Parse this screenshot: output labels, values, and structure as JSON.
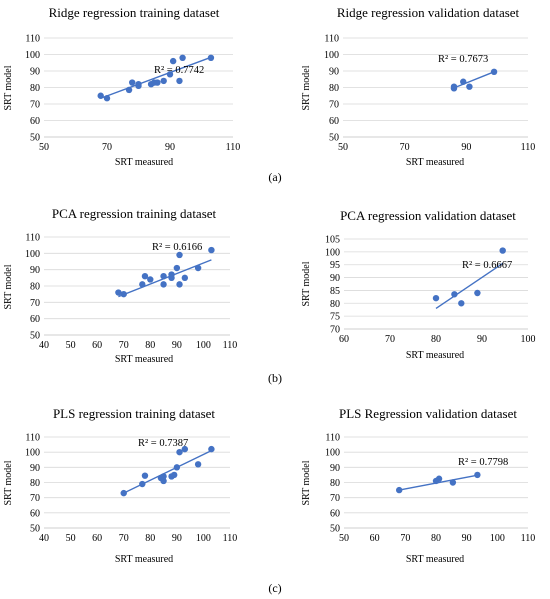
{
  "panels": [
    {
      "label": "(a)"
    },
    {
      "label": "(b)"
    },
    {
      "label": "(c)"
    }
  ],
  "chart_data": [
    {
      "type": "scatter",
      "title": "Ridge regression training dataset",
      "xlabel": "SRT measured",
      "ylabel": "SRT model",
      "xlim": [
        50,
        110
      ],
      "ylim": [
        50,
        110
      ],
      "xticks": [
        50,
        70,
        90,
        110
      ],
      "yticks": [
        50,
        60,
        70,
        80,
        90,
        100,
        110
      ],
      "r2_label": "R² = 0.7742",
      "trendline": [
        [
          68,
          73.5
        ],
        [
          103,
          98.3
        ]
      ],
      "points": [
        [
          68,
          75
        ],
        [
          70,
          73.5
        ],
        [
          77,
          78.5
        ],
        [
          78,
          83
        ],
        [
          80,
          81
        ],
        [
          80,
          82
        ],
        [
          84,
          82
        ],
        [
          85,
          83
        ],
        [
          86,
          83
        ],
        [
          88,
          84
        ],
        [
          90,
          88
        ],
        [
          91,
          96
        ],
        [
          93,
          84
        ],
        [
          94,
          98
        ],
        [
          103,
          98
        ]
      ]
    },
    {
      "type": "scatter",
      "title": "Ridge regression validation dataset",
      "xlabel": "SRT measured",
      "ylabel": "SRT model",
      "xlim": [
        50,
        110
      ],
      "ylim": [
        50,
        110
      ],
      "xticks": [
        50,
        70,
        90,
        110
      ],
      "yticks": [
        50,
        60,
        70,
        80,
        90,
        100,
        110
      ],
      "r2_label": "R² = 0.7673",
      "trendline": [
        [
          85,
          79
        ],
        [
          99,
          89.5
        ]
      ],
      "points": [
        [
          86,
          79.5
        ],
        [
          86,
          80.5
        ],
        [
          89,
          83.5
        ],
        [
          91,
          80.5
        ],
        [
          99,
          89.5
        ]
      ]
    },
    {
      "type": "scatter",
      "title": "PCA regression training dataset",
      "xlabel": "SRT measured",
      "ylabel": "SRT model",
      "xlim": [
        40,
        110
      ],
      "ylim": [
        50,
        110
      ],
      "xticks": [
        40,
        50,
        60,
        70,
        80,
        90,
        100,
        110
      ],
      "yticks": [
        50,
        60,
        70,
        80,
        90,
        100,
        110
      ],
      "r2_label": "R² = 0.6166",
      "trendline": [
        [
          68,
          73.5
        ],
        [
          103,
          96
        ]
      ],
      "points": [
        [
          68,
          76
        ],
        [
          70,
          75
        ],
        [
          77,
          81
        ],
        [
          78,
          86
        ],
        [
          80,
          84
        ],
        [
          85,
          81
        ],
        [
          85,
          86
        ],
        [
          88,
          85
        ],
        [
          88,
          87
        ],
        [
          90,
          91
        ],
        [
          91,
          81
        ],
        [
          91,
          99
        ],
        [
          93,
          85
        ],
        [
          98,
          91
        ],
        [
          103,
          102
        ]
      ]
    },
    {
      "type": "scatter",
      "title": "PCA regression validation dataset",
      "xlabel": "SRT measured",
      "ylabel": "SRT model",
      "xlim": [
        60,
        100
      ],
      "ylim": [
        70,
        105
      ],
      "xticks": [
        60,
        70,
        80,
        90,
        100
      ],
      "yticks": [
        70,
        75,
        80,
        85,
        90,
        95,
        100,
        105
      ],
      "r2_label": "R² = 0.6667",
      "trendline": [
        [
          80,
          78
        ],
        [
          94.5,
          95.5
        ]
      ],
      "points": [
        [
          80,
          82
        ],
        [
          84,
          83.5
        ],
        [
          85.5,
          80
        ],
        [
          89,
          84
        ],
        [
          94.5,
          100.5
        ]
      ]
    },
    {
      "type": "scatter",
      "title": "PLS regression training dataset",
      "xlabel": "SRT measured",
      "ylabel": "SRT model",
      "xlim": [
        40,
        110
      ],
      "ylim": [
        50,
        110
      ],
      "xticks": [
        40,
        50,
        60,
        70,
        80,
        90,
        100,
        110
      ],
      "yticks": [
        50,
        60,
        70,
        80,
        90,
        100,
        110
      ],
      "r2_label": "R² = 0.7387",
      "trendline": [
        [
          70,
          73
        ],
        [
          103,
          101
        ]
      ],
      "points": [
        [
          70,
          73
        ],
        [
          77,
          79
        ],
        [
          78,
          84.5
        ],
        [
          84,
          83
        ],
        [
          85,
          81
        ],
        [
          85,
          84
        ],
        [
          88,
          84
        ],
        [
          89,
          85
        ],
        [
          90,
          90
        ],
        [
          91,
          100
        ],
        [
          93,
          102
        ],
        [
          98,
          92
        ],
        [
          103,
          102
        ]
      ]
    },
    {
      "type": "scatter",
      "title": "PLS Regression validation dataset",
      "xlabel": "SRT measured",
      "ylabel": "SRT model",
      "xlim": [
        50,
        110
      ],
      "ylim": [
        50,
        110
      ],
      "xticks": [
        50,
        60,
        70,
        80,
        90,
        100,
        110
      ],
      "yticks": [
        50,
        60,
        70,
        80,
        90,
        100,
        110
      ],
      "r2_label": "R² = 0.7798",
      "trendline": [
        [
          68,
          75
        ],
        [
          94,
          85
        ]
      ],
      "points": [
        [
          68,
          75
        ],
        [
          80,
          81
        ],
        [
          81,
          82.5
        ],
        [
          85.5,
          80
        ],
        [
          93.5,
          85
        ]
      ]
    }
  ]
}
